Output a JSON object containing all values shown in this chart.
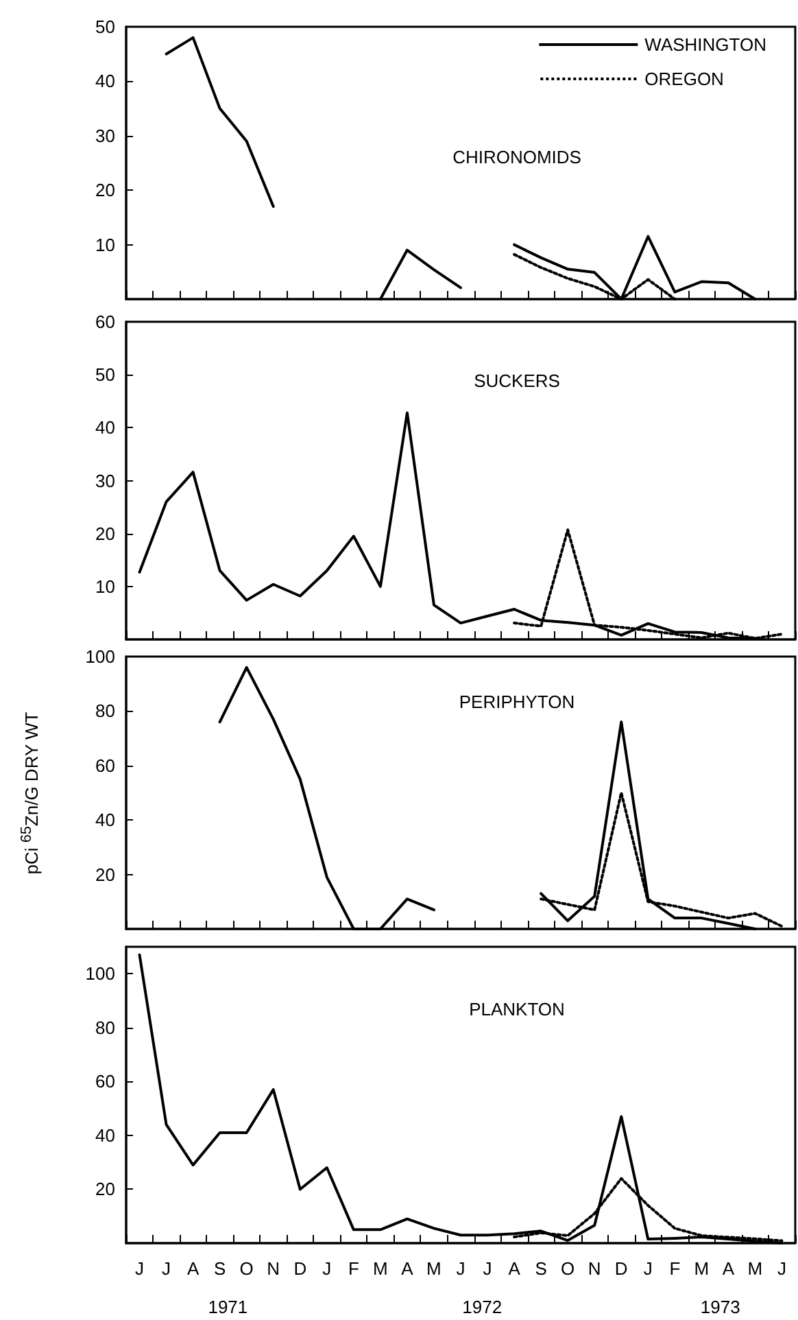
{
  "chart_data": [
    {
      "type": "line",
      "title": "CHIRONOMIDS",
      "legend": "top right",
      "tick_labels": "y",
      "categories": [
        null,
        null,
        null,
        null,
        null,
        null,
        null,
        null,
        null,
        null,
        null,
        null,
        null,
        null,
        null,
        null,
        null,
        null,
        null,
        null,
        null,
        null,
        null,
        null,
        null
      ],
      "ylim": [
        0,
        50
      ],
      "yticks": [
        10,
        20,
        30,
        40,
        50
      ],
      "series": [
        {
          "name": "WASHINGTON",
          "color": "#000000",
          "line_style": "solid",
          "values": [
            null,
            45,
            48,
            35,
            29,
            17,
            null,
            null,
            null,
            0,
            9,
            5.4,
            2.1,
            null,
            10,
            7.6,
            5.5,
            4.9,
            0,
            11.5,
            1.3,
            3.2,
            3,
            0,
            null
          ]
        },
        {
          "name": "OREGON",
          "color": "#000000",
          "line_style": "dotted",
          "values": [
            null,
            null,
            null,
            null,
            null,
            null,
            null,
            null,
            null,
            null,
            null,
            null,
            null,
            null,
            8.2,
            5.8,
            3.8,
            2.3,
            0,
            3.6,
            0,
            null,
            null,
            null,
            null
          ]
        }
      ]
    },
    {
      "type": "line",
      "title": "SUCKERS",
      "tick_labels": "y",
      "categories": [
        null,
        null,
        null,
        null,
        null,
        null,
        null,
        null,
        null,
        null,
        null,
        null,
        null,
        null,
        null,
        null,
        null,
        null,
        null,
        null,
        null,
        null,
        null,
        null,
        null
      ],
      "ylim": [
        0,
        60
      ],
      "yticks": [
        10,
        20,
        30,
        40,
        50,
        60
      ],
      "series": [
        {
          "color": "#000000",
          "line_style": "solid",
          "values": [
            12.7,
            26,
            31.6,
            13,
            7.4,
            10.4,
            8.2,
            13,
            19.5,
            10,
            42.8,
            6.5,
            3.1,
            4.4,
            5.7,
            3.6,
            3.2,
            2.7,
            0.8,
            3,
            1.4,
            1.3,
            0.3,
            0.2,
            null
          ]
        },
        {
          "color": "#000000",
          "line_style": "dotted",
          "values": [
            null,
            null,
            null,
            null,
            null,
            null,
            null,
            null,
            null,
            null,
            null,
            null,
            null,
            null,
            3.1,
            2.5,
            20.7,
            2.7,
            2.3,
            1.7,
            1,
            0.3,
            1.2,
            0.2,
            1
          ]
        }
      ]
    },
    {
      "type": "line",
      "title": "PERIPHYTON",
      "ylabel": "pCi $^{65}$Zn/G DRY WT",
      "tick_labels": "y",
      "categories": [
        null,
        null,
        null,
        null,
        null,
        null,
        null,
        null,
        null,
        null,
        null,
        null,
        null,
        null,
        null,
        null,
        null,
        null,
        null,
        null,
        null,
        null,
        null,
        null,
        null
      ],
      "ylim": [
        0,
        100
      ],
      "yticks": [
        20,
        40,
        60,
        80,
        100
      ],
      "series": [
        {
          "color": "#000000",
          "line_style": "solid",
          "values": [
            null,
            null,
            null,
            76,
            96,
            77,
            55,
            19,
            0,
            0,
            11,
            7,
            null,
            null,
            null,
            13,
            3,
            12,
            76,
            11,
            4,
            4,
            2,
            0,
            null
          ]
        },
        {
          "color": "#000000",
          "line_style": "dotted",
          "values": [
            null,
            null,
            null,
            null,
            null,
            null,
            null,
            null,
            null,
            null,
            null,
            null,
            null,
            null,
            null,
            11,
            9,
            7,
            50,
            10,
            8.4,
            6.2,
            4,
            5.7,
            1
          ]
        }
      ]
    },
    {
      "type": "line",
      "title": "PLANKTON",
      "categories": [
        "J",
        "J",
        "A",
        "S",
        "O",
        "N",
        "D",
        "J",
        "F",
        "M",
        "A",
        "M",
        "J",
        "J",
        "A",
        "S",
        "O",
        "N",
        "D",
        "J",
        "F",
        "M",
        "A",
        "M",
        "J"
      ],
      "ylim": [
        0,
        110
      ],
      "yticks": [
        20,
        40,
        60,
        80,
        100
      ],
      "annotations": [
        "1971",
        "1972",
        "1973"
      ],
      "series": [
        {
          "color": "#000000",
          "line_style": "solid",
          "values": [
            107,
            44,
            29,
            41,
            41,
            57,
            20,
            28,
            5,
            5,
            9,
            5.5,
            3,
            3,
            3.5,
            4.5,
            1,
            6.6,
            47,
            1.5,
            1.8,
            2.3,
            1.5,
            0.7,
            0
          ]
        },
        {
          "color": "#000000",
          "line_style": "dotted",
          "values": [
            null,
            null,
            null,
            null,
            null,
            null,
            null,
            null,
            null,
            null,
            null,
            null,
            null,
            null,
            2.3,
            3.8,
            2.8,
            11,
            24,
            14,
            5.5,
            2.8,
            2.2,
            1.6,
            0.9
          ]
        }
      ]
    }
  ]
}
